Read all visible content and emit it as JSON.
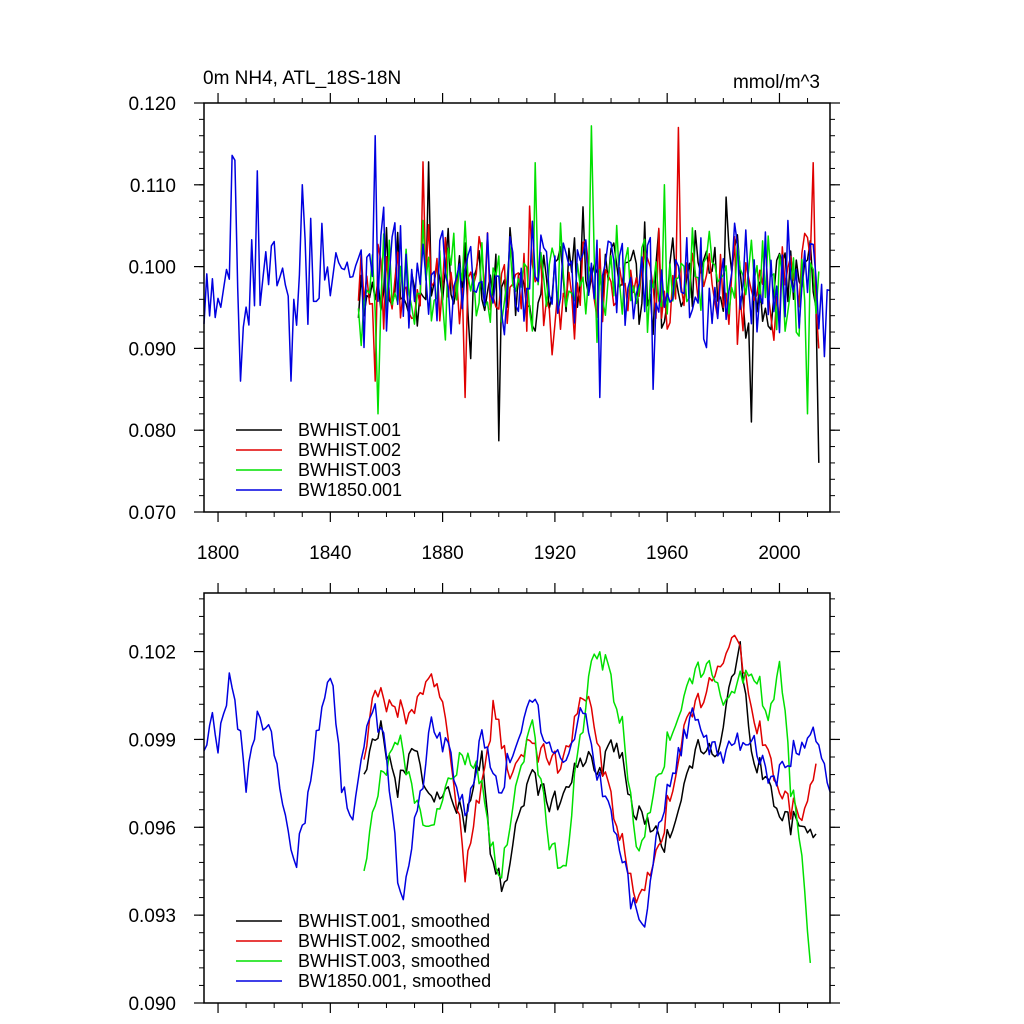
{
  "colors": {
    "BWHIST.001": "#000000",
    "BWHIST.002": "#e00000",
    "BWHIST.003": "#00e000",
    "BW1850.001": "#0000e0"
  },
  "chart_data": [
    {
      "type": "line",
      "title": "0m NH4, ATL_18S-18N",
      "units": "mmol/m^3",
      "xlim": [
        1795,
        2018
      ],
      "ylim": [
        0.07,
        0.12
      ],
      "xticks": [
        1800,
        1840,
        1880,
        1920,
        1960,
        2000
      ],
      "xtick_labels": [
        "1800",
        "1840",
        "1880",
        "1920",
        "1960",
        "2000"
      ],
      "yticks": [
        0.07,
        0.08,
        0.09,
        0.1,
        0.11,
        0.12
      ],
      "ytick_labels": [
        "0.070",
        "0.080",
        "0.090",
        "0.100",
        "0.110",
        "0.120"
      ],
      "legend_position": "bottom-left",
      "series": [
        {
          "name": "BWHIST.001",
          "x_start": 1850,
          "x_end": 2014,
          "mean": 0.098,
          "amp": 0.005,
          "seed": 11,
          "anchors": [
            [
              1875,
              0.1128
            ],
            [
              1900,
              0.0787
            ],
            [
              1930,
              0.1073
            ],
            [
              1981,
              0.1085
            ],
            [
              1990,
              0.081
            ],
            [
              2014,
              0.076
            ]
          ]
        },
        {
          "name": "BWHIST.002",
          "x_start": 1850,
          "x_end": 2014,
          "mean": 0.098,
          "amp": 0.005,
          "seed": 23,
          "anchors": [
            [
              1856,
              0.086
            ],
            [
              1873,
              0.1128
            ],
            [
              1888,
              0.084
            ],
            [
              1964,
              0.117
            ],
            [
              2012,
              0.1127
            ],
            [
              2014,
              0.09
            ]
          ]
        },
        {
          "name": "BWHIST.003",
          "x_start": 1850,
          "x_end": 2014,
          "mean": 0.098,
          "amp": 0.005,
          "seed": 37,
          "anchors": [
            [
              1857,
              0.082
            ],
            [
              1913,
              0.1127
            ],
            [
              1933,
              0.1172
            ],
            [
              2010,
              0.082
            ],
            [
              1959,
              0.11
            ]
          ]
        },
        {
          "name": "BW1850.001",
          "x_start": 1795,
          "x_end": 2018,
          "mean": 0.0985,
          "amp": 0.0052,
          "seed": 53,
          "anchors": [
            [
              1795,
              0.093
            ],
            [
              1805,
              0.1136
            ],
            [
              1806,
              0.113
            ],
            [
              1808,
              0.086
            ],
            [
              1814,
              0.1117
            ],
            [
              1826,
              0.086
            ],
            [
              1830,
              0.11
            ],
            [
              1856,
              0.116
            ],
            [
              1936,
              0.084
            ],
            [
              1955,
              0.085
            ],
            [
              2016,
              0.089
            ]
          ]
        }
      ]
    },
    {
      "type": "line",
      "title": "",
      "xlim": [
        1795,
        2018
      ],
      "ylim": [
        0.09,
        0.104
      ],
      "xticks": [
        1800,
        1840,
        1880,
        1920,
        1960,
        2000
      ],
      "yticks": [
        0.09,
        0.093,
        0.096,
        0.099,
        0.102
      ],
      "ytick_labels": [
        "0.090",
        "0.093",
        "0.096",
        "0.099",
        "0.102"
      ],
      "legend_position": "bottom-left",
      "series": [
        {
          "name": "BWHIST.001, smoothed",
          "x_start": 1852,
          "x_end": 2013,
          "x": [
            1852,
            1858,
            1864,
            1870,
            1876,
            1882,
            1888,
            1894,
            1898,
            1902,
            1906,
            1912,
            1918,
            1924,
            1930,
            1936,
            1942,
            1948,
            1954,
            1960,
            1966,
            1972,
            1978,
            1982,
            1986,
            1990,
            1996,
            2002,
            2008,
            2013
          ],
          "y": [
            0.098,
            0.0992,
            0.0972,
            0.099,
            0.0968,
            0.0975,
            0.0962,
            0.0985,
            0.0945,
            0.094,
            0.0962,
            0.0978,
            0.0968,
            0.0972,
            0.0985,
            0.0978,
            0.099,
            0.0968,
            0.096,
            0.0955,
            0.0975,
            0.099,
            0.0985,
            0.101,
            0.102,
            0.0985,
            0.0975,
            0.0963,
            0.096,
            0.0956
          ]
        },
        {
          "name": "BWHIST.002, smoothed",
          "x_start": 1852,
          "x_end": 2013,
          "x": [
            1852,
            1856,
            1862,
            1868,
            1874,
            1880,
            1884,
            1888,
            1894,
            1898,
            1904,
            1910,
            1916,
            1922,
            1926,
            1930,
            1934,
            1938,
            1944,
            1950,
            1956,
            1962,
            1966,
            1972,
            1978,
            1984,
            1990,
            1996,
            2002,
            2008,
            2013
          ],
          "y": [
            0.0985,
            0.1005,
            0.1,
            0.0998,
            0.1012,
            0.1005,
            0.0978,
            0.0945,
            0.0975,
            0.1,
            0.098,
            0.0988,
            0.0985,
            0.0982,
            0.099,
            0.1008,
            0.0995,
            0.0975,
            0.0955,
            0.0935,
            0.095,
            0.0975,
            0.0995,
            0.1005,
            0.1015,
            0.1028,
            0.1,
            0.0985,
            0.097,
            0.0962,
            0.098
          ]
        },
        {
          "name": "BWHIST.003, smoothed",
          "x_start": 1852,
          "x_end": 2011,
          "x": [
            1852,
            1858,
            1864,
            1870,
            1876,
            1882,
            1888,
            1894,
            1900,
            1906,
            1912,
            1918,
            1924,
            1928,
            1934,
            1938,
            1944,
            1950,
            1956,
            1962,
            1968,
            1974,
            1980,
            1986,
            1992,
            1996,
            2000,
            2004,
            2008,
            2011
          ],
          "y": [
            0.0947,
            0.0975,
            0.099,
            0.0972,
            0.0958,
            0.0978,
            0.0985,
            0.0975,
            0.094,
            0.0975,
            0.0995,
            0.0955,
            0.0945,
            0.0985,
            0.102,
            0.1015,
            0.0995,
            0.095,
            0.0975,
            0.0995,
            0.101,
            0.1018,
            0.1005,
            0.101,
            0.1012,
            0.0995,
            0.102,
            0.0975,
            0.095,
            0.0912
          ]
        },
        {
          "name": "BW1850.001, smoothed",
          "x_start": 1795,
          "x_end": 2018,
          "x": [
            1795,
            1798,
            1800,
            1804,
            1806,
            1810,
            1814,
            1818,
            1822,
            1826,
            1828,
            1832,
            1836,
            1840,
            1844,
            1848,
            1852,
            1856,
            1860,
            1864,
            1866,
            1870,
            1876,
            1882,
            1888,
            1894,
            1900,
            1906,
            1912,
            1918,
            1924,
            1930,
            1936,
            1942,
            1948,
            1952,
            1956,
            1962,
            1968,
            1974,
            1980,
            1986,
            1992,
            1998,
            2004,
            2010,
            2014,
            2018
          ],
          "y": [
            0.0988,
            0.0995,
            0.0985,
            0.101,
            0.1002,
            0.0975,
            0.1,
            0.0995,
            0.0975,
            0.0955,
            0.095,
            0.097,
            0.0995,
            0.1015,
            0.0975,
            0.0965,
            0.099,
            0.1,
            0.0985,
            0.0945,
            0.0935,
            0.096,
            0.0995,
            0.0985,
            0.0965,
            0.0992,
            0.0972,
            0.099,
            0.1005,
            0.0988,
            0.0985,
            0.1,
            0.0975,
            0.096,
            0.0932,
            0.0925,
            0.0955,
            0.0978,
            0.0998,
            0.099,
            0.0985,
            0.099,
            0.0988,
            0.0975,
            0.0985,
            0.099,
            0.0992,
            0.0972
          ]
        }
      ]
    }
  ]
}
